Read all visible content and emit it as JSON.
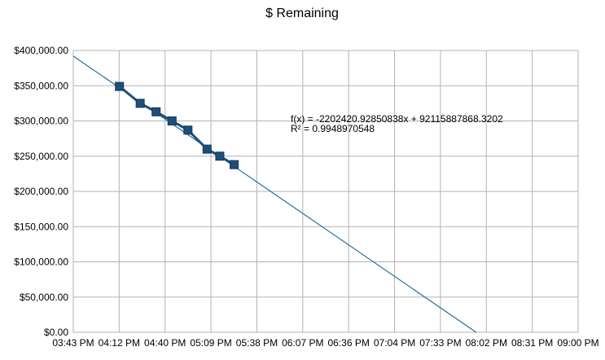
{
  "chart_data": {
    "type": "line",
    "title": "$  Remaining",
    "xlabel": "",
    "ylabel": "",
    "x_ticks": [
      "03:43 PM",
      "04:12 PM",
      "04:40 PM",
      "05:09 PM",
      "05:38 PM",
      "06:07 PM",
      "06:36 PM",
      "07:04 PM",
      "07:33 PM",
      "08:02 PM",
      "08:31 PM",
      "09:00 PM"
    ],
    "y_ticks": [
      "$0.00",
      "$50,000.00",
      "$100,000.00",
      "$150,000.00",
      "$200,000.00",
      "$250,000.00",
      "$300,000.00",
      "$350,000.00",
      "$400,000.00"
    ],
    "xlim_minutes_since_midnight": [
      943,
      1260
    ],
    "ylim": [
      0,
      400000
    ],
    "grid": true,
    "series": [
      {
        "color": "#1f4e79",
        "marker": "square",
        "x_minutes_since_midnight": [
          972,
          985,
          995,
          1005,
          1015,
          1027,
          1035,
          1044
        ],
        "values": [
          349000,
          325000,
          313000,
          300000,
          287000,
          260000,
          250000,
          238000
        ]
      }
    ],
    "trendline": {
      "color": "#1f6f9e",
      "x_minutes_since_midnight": [
        943,
        1196
      ],
      "values": [
        392000,
        0
      ],
      "equation": "f(x) = -2202420.92850838x + 92115887868.3202",
      "r_squared": "R² = 0.9948970548"
    }
  }
}
